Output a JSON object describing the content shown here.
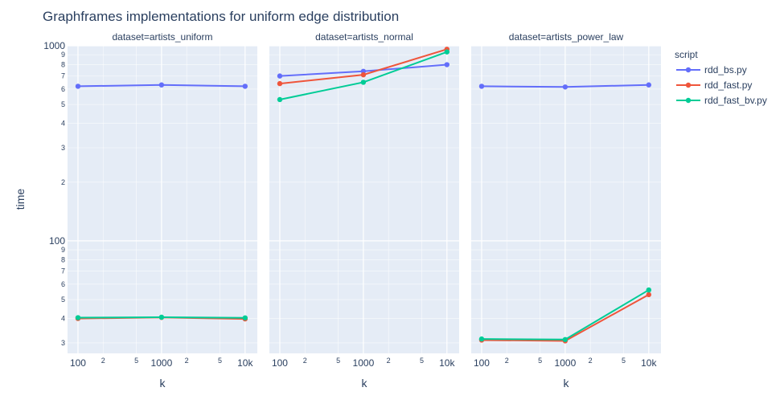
{
  "chart_data": {
    "type": "line",
    "title": "Graphframes implementations for uniform edge distribution",
    "xlabel": "k",
    "ylabel": "time",
    "x_scale": "log",
    "y_scale": "log",
    "x": [
      100,
      1000,
      10000
    ],
    "x_tick_labels": [
      "100",
      "2",
      "5",
      "1000",
      "2",
      "5",
      "10k"
    ],
    "y_major_tick_labels": [
      "100",
      "1000"
    ],
    "y_minor_tick_labels": [
      "3",
      "4",
      "5",
      "6",
      "7",
      "8",
      "9",
      "2",
      "3",
      "4",
      "5",
      "6",
      "7",
      "8",
      "9"
    ],
    "xlim": [
      75,
      14000
    ],
    "ylim": [
      26.5,
      1000
    ],
    "grid": true,
    "legend": {
      "title": "script",
      "placement": "right"
    },
    "series_styles": [
      {
        "name": "rdd_bs.py",
        "color": "#636efa"
      },
      {
        "name": "rdd_fast.py",
        "color": "#ef553b"
      },
      {
        "name": "rdd_fast_bv.py",
        "color": "#00cc96"
      }
    ],
    "panels": [
      {
        "title": "dataset=artists_uniform",
        "series": [
          {
            "name": "rdd_bs.py",
            "values": [
              620,
              630,
              620
            ]
          },
          {
            "name": "rdd_fast.py",
            "values": [
              40,
              40.5,
              39.8
            ]
          },
          {
            "name": "rdd_fast_bv.py",
            "values": [
              40.4,
              40.6,
              40.3
            ]
          }
        ]
      },
      {
        "title": "dataset=artists_normal",
        "series": [
          {
            "name": "rdd_bs.py",
            "values": [
              700,
              740,
              800
            ]
          },
          {
            "name": "rdd_fast.py",
            "values": [
              640,
              710,
              960
            ]
          },
          {
            "name": "rdd_fast_bv.py",
            "values": [
              530,
              650,
              930
            ]
          }
        ]
      },
      {
        "title": "dataset=artists_power_law",
        "series": [
          {
            "name": "rdd_bs.py",
            "values": [
              620,
              615,
              630
            ]
          },
          {
            "name": "rdd_fast.py",
            "values": [
              31,
              30.7,
              53
            ]
          },
          {
            "name": "rdd_fast_bv.py",
            "values": [
              31.4,
              31.2,
              56
            ]
          }
        ]
      }
    ]
  }
}
